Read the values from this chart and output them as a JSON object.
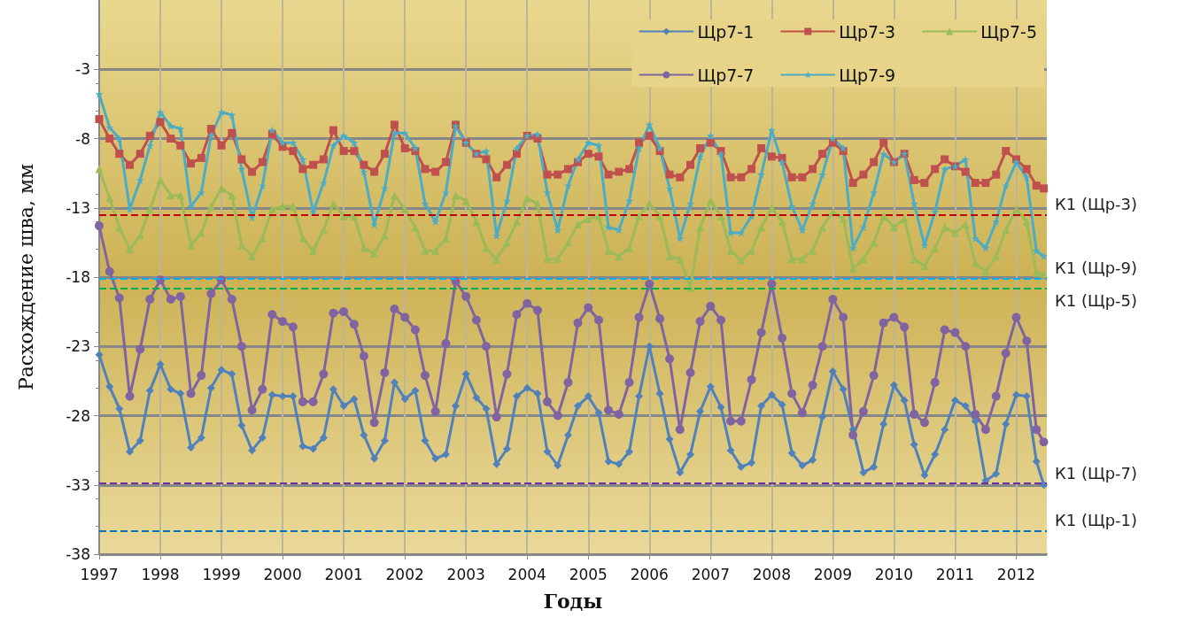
{
  "chart_data": {
    "type": "line",
    "xlabel": "Годы",
    "ylabel": "Расхождение шва, мм",
    "x": [
      1997,
      1997.17,
      1997.33,
      1997.5,
      1997.67,
      1997.83,
      1998,
      1998.17,
      1998.33,
      1998.5,
      1998.67,
      1998.83,
      1999,
      1999.17,
      1999.33,
      1999.5,
      1999.67,
      1999.83,
      2000,
      2000.17,
      2000.33,
      2000.5,
      2000.67,
      2000.83,
      2001,
      2001.17,
      2001.33,
      2001.5,
      2001.67,
      2001.83,
      2002,
      2002.17,
      2002.33,
      2002.5,
      2002.67,
      2002.83,
      2003,
      2003.17,
      2003.33,
      2003.5,
      2003.67,
      2003.83,
      2004,
      2004.17,
      2004.33,
      2004.5,
      2004.67,
      2004.83,
      2005,
      2005.17,
      2005.33,
      2005.5,
      2005.67,
      2005.83,
      2006,
      2006.17,
      2006.33,
      2006.5,
      2006.67,
      2006.83,
      2007,
      2007.17,
      2007.33,
      2007.5,
      2007.67,
      2007.83,
      2008,
      2008.17,
      2008.33,
      2008.5,
      2008.67,
      2008.83,
      2009,
      2009.17,
      2009.33,
      2009.5,
      2009.67,
      2009.83,
      2010,
      2010.17,
      2010.33,
      2010.5,
      2010.67,
      2010.83,
      2011,
      2011.17,
      2011.33,
      2011.5,
      2011.67,
      2011.83,
      2012,
      2012.17,
      2012.33,
      2012.45
    ],
    "series": [
      {
        "name": "Щр7-1",
        "color": "#4f81bd",
        "marker": "diamond",
        "values": [
          -23.6,
          -25.9,
          -27.5,
          -30.6,
          -29.8,
          -26.2,
          -24.3,
          -26.1,
          -26.4,
          -30.3,
          -29.6,
          -26.0,
          -24.7,
          -25.0,
          -28.7,
          -30.5,
          -29.6,
          -26.5,
          -26.6,
          -26.6,
          -30.2,
          -30.4,
          -29.6,
          -26.1,
          -27.3,
          -26.8,
          -29.4,
          -31.1,
          -29.8,
          -25.6,
          -26.8,
          -26.2,
          -29.8,
          -31.1,
          -30.8,
          -27.3,
          -25.0,
          -26.7,
          -27.5,
          -31.5,
          -30.4,
          -26.6,
          -26.0,
          -26.4,
          -30.6,
          -31.6,
          -29.4,
          -27.3,
          -26.6,
          -27.8,
          -31.3,
          -31.5,
          -30.6,
          -26.6,
          -23.0,
          -26.4,
          -29.7,
          -32.1,
          -30.8,
          -27.7,
          -25.9,
          -27.4,
          -30.5,
          -31.7,
          -31.4,
          -27.3,
          -26.5,
          -27.2,
          -30.7,
          -31.6,
          -31.2,
          -28.1,
          -24.8,
          -26.1,
          -29.0,
          -32.1,
          -31.7,
          -28.6,
          -25.8,
          -26.9,
          -30.1,
          -32.3,
          -30.8,
          -29.0,
          -26.9,
          -27.3,
          -28.4,
          -32.7,
          -32.2,
          -28.6,
          -26.5,
          -26.6,
          -31.3,
          -33.0
        ]
      },
      {
        "name": "Щр7-3",
        "color": "#c0504d",
        "marker": "square",
        "values": [
          -6.6,
          -8.0,
          -9.1,
          -9.9,
          -9.1,
          -7.8,
          -6.8,
          -8.0,
          -8.5,
          -9.8,
          -9.4,
          -7.3,
          -8.5,
          -7.6,
          -9.5,
          -10.4,
          -9.7,
          -7.7,
          -8.6,
          -8.9,
          -10.2,
          -9.9,
          -9.5,
          -7.4,
          -8.9,
          -8.9,
          -9.9,
          -10.4,
          -9.1,
          -7.0,
          -8.7,
          -8.9,
          -10.2,
          -10.4,
          -9.7,
          -7.0,
          -8.3,
          -9.1,
          -9.5,
          -10.8,
          -9.9,
          -9.1,
          -7.8,
          -8.0,
          -10.6,
          -10.6,
          -10.2,
          -9.7,
          -9.1,
          -9.3,
          -10.6,
          -10.4,
          -10.2,
          -8.3,
          -7.8,
          -8.9,
          -10.6,
          -10.8,
          -9.9,
          -8.7,
          -8.3,
          -8.9,
          -10.8,
          -10.8,
          -10.2,
          -8.7,
          -9.3,
          -9.4,
          -10.8,
          -10.8,
          -10.2,
          -9.1,
          -8.3,
          -8.9,
          -11.2,
          -10.6,
          -9.7,
          -8.3,
          -9.7,
          -9.1,
          -11.0,
          -11.2,
          -10.2,
          -9.5,
          -10.0,
          -10.4,
          -11.2,
          -11.2,
          -10.6,
          -8.9,
          -9.5,
          -10.2,
          -11.4,
          -11.6
        ]
      },
      {
        "name": "Щр7-5",
        "color": "#9bbb59",
        "marker": "triangle",
        "values": [
          -10.2,
          -12.3,
          -14.4,
          -16.0,
          -15.0,
          -13.1,
          -11.0,
          -12.1,
          -12.1,
          -15.7,
          -14.8,
          -12.9,
          -11.6,
          -12.1,
          -15.7,
          -16.5,
          -15.2,
          -13.1,
          -12.9,
          -12.9,
          -15.2,
          -16.1,
          -14.6,
          -12.7,
          -13.6,
          -13.6,
          -15.9,
          -16.3,
          -15.0,
          -12.1,
          -13.1,
          -14.4,
          -16.1,
          -16.1,
          -15.2,
          -12.1,
          -12.5,
          -14.0,
          -15.9,
          -16.7,
          -15.5,
          -14.0,
          -12.3,
          -12.7,
          -16.7,
          -16.7,
          -15.5,
          -14.2,
          -13.8,
          -13.6,
          -16.1,
          -16.5,
          -15.9,
          -13.6,
          -12.7,
          -13.6,
          -16.5,
          -16.7,
          -18.8,
          -14.4,
          -12.5,
          -13.6,
          -16.1,
          -16.8,
          -16.1,
          -14.4,
          -13.0,
          -14.0,
          -16.7,
          -16.7,
          -16.1,
          -14.4,
          -13.3,
          -13.8,
          -17.4,
          -16.7,
          -15.5,
          -13.6,
          -14.4,
          -13.8,
          -16.7,
          -17.2,
          -15.9,
          -14.4,
          -14.8,
          -14.2,
          -17.0,
          -17.6,
          -16.5,
          -14.6,
          -13.1,
          -14.0,
          -17.7,
          -17.8
        ]
      },
      {
        "name": "Щр7-7",
        "color": "#8064a2",
        "marker": "circle",
        "values": [
          -14.3,
          -17.6,
          -19.5,
          -26.6,
          -23.2,
          -19.6,
          -18.2,
          -19.6,
          -19.4,
          -26.4,
          -25.1,
          -19.2,
          -18.2,
          -19.6,
          -23.0,
          -27.6,
          -26.1,
          -20.7,
          -21.2,
          -21.6,
          -27.0,
          -27.0,
          -25.0,
          -20.6,
          -20.5,
          -21.4,
          -23.7,
          -28.5,
          -24.9,
          -20.3,
          -20.9,
          -21.8,
          -25.1,
          -27.7,
          -22.8,
          -18.3,
          -19.4,
          -21.1,
          -23.0,
          -28.1,
          -25.0,
          -20.7,
          -19.9,
          -20.4,
          -27.0,
          -28.0,
          -25.6,
          -21.3,
          -20.2,
          -21.1,
          -27.6,
          -27.9,
          -25.6,
          -20.9,
          -18.5,
          -21.0,
          -23.9,
          -29.0,
          -24.9,
          -21.2,
          -20.1,
          -21.1,
          -28.4,
          -28.4,
          -25.4,
          -22.0,
          -18.5,
          -22.4,
          -26.4,
          -27.8,
          -25.8,
          -23.0,
          -19.6,
          -20.9,
          -29.4,
          -27.7,
          -25.1,
          -21.3,
          -20.9,
          -21.6,
          -27.9,
          -28.5,
          -25.6,
          -21.8,
          -22.0,
          -23.0,
          -27.9,
          -29.0,
          -26.6,
          -23.5,
          -20.9,
          -22.6,
          -29.0,
          -29.9
        ]
      },
      {
        "name": "Щр7-9",
        "color": "#4bacc6",
        "marker": "star",
        "values": [
          -4.8,
          -7.2,
          -8.0,
          -13.1,
          -11.0,
          -8.5,
          -6.1,
          -7.1,
          -7.3,
          -12.9,
          -11.9,
          -7.8,
          -6.1,
          -6.3,
          -10.2,
          -13.7,
          -11.4,
          -7.4,
          -8.3,
          -8.3,
          -9.5,
          -13.3,
          -11.2,
          -8.5,
          -7.8,
          -8.3,
          -10.4,
          -14.2,
          -11.6,
          -7.6,
          -7.6,
          -8.7,
          -12.7,
          -14.0,
          -11.9,
          -7.1,
          -8.3,
          -9.1,
          -8.9,
          -15.0,
          -12.5,
          -8.7,
          -7.8,
          -7.7,
          -11.9,
          -14.6,
          -11.4,
          -9.5,
          -8.3,
          -8.5,
          -14.4,
          -14.6,
          -12.5,
          -8.7,
          -7.0,
          -8.7,
          -11.6,
          -15.2,
          -12.7,
          -9.3,
          -7.8,
          -9.1,
          -14.8,
          -14.8,
          -13.6,
          -10.6,
          -7.4,
          -9.7,
          -12.9,
          -14.6,
          -12.7,
          -10.6,
          -8.0,
          -8.7,
          -15.9,
          -14.4,
          -11.9,
          -9.1,
          -9.7,
          -9.1,
          -12.7,
          -15.7,
          -13.3,
          -10.2,
          -10.0,
          -9.5,
          -15.2,
          -15.9,
          -14.0,
          -11.4,
          -9.7,
          -10.8,
          -16.1,
          -16.5
        ]
      }
    ],
    "xlim": [
      1997,
      2012.5
    ],
    "xticks": [
      1997,
      1998,
      1999,
      2000,
      2001,
      2002,
      2003,
      2004,
      2005,
      2006,
      2007,
      2008,
      2009,
      2010,
      2011,
      2012
    ],
    "ylim": [
      -38,
      2
    ],
    "yticks": [
      -38,
      -33,
      -28,
      -23,
      -18,
      -13,
      -8,
      -3
    ],
    "ref_lines": [
      {
        "axis": "y",
        "value": -13.5,
        "label": "К1 (Щр-3)",
        "color": "#c00000",
        "line_style": "dashed"
      },
      {
        "axis": "y",
        "value": -18.1,
        "label": "К1 (Щр-9)",
        "color": "#00b0f0",
        "line_style": "dashed"
      },
      {
        "axis": "y",
        "value": -18.8,
        "label": "К1 (Щр-5)",
        "color": "#00b050",
        "line_style": "dashed"
      },
      {
        "axis": "y",
        "value": -32.9,
        "label": "К1 (Щр-7)",
        "color": "#7030a0",
        "line_style": "dashed"
      },
      {
        "axis": "y",
        "value": -36.3,
        "label": "К1 (Щр-1)",
        "color": "#0070c0",
        "line_style": "dashed"
      }
    ],
    "grid": true,
    "legend": "top right",
    "line_style": "solid"
  }
}
